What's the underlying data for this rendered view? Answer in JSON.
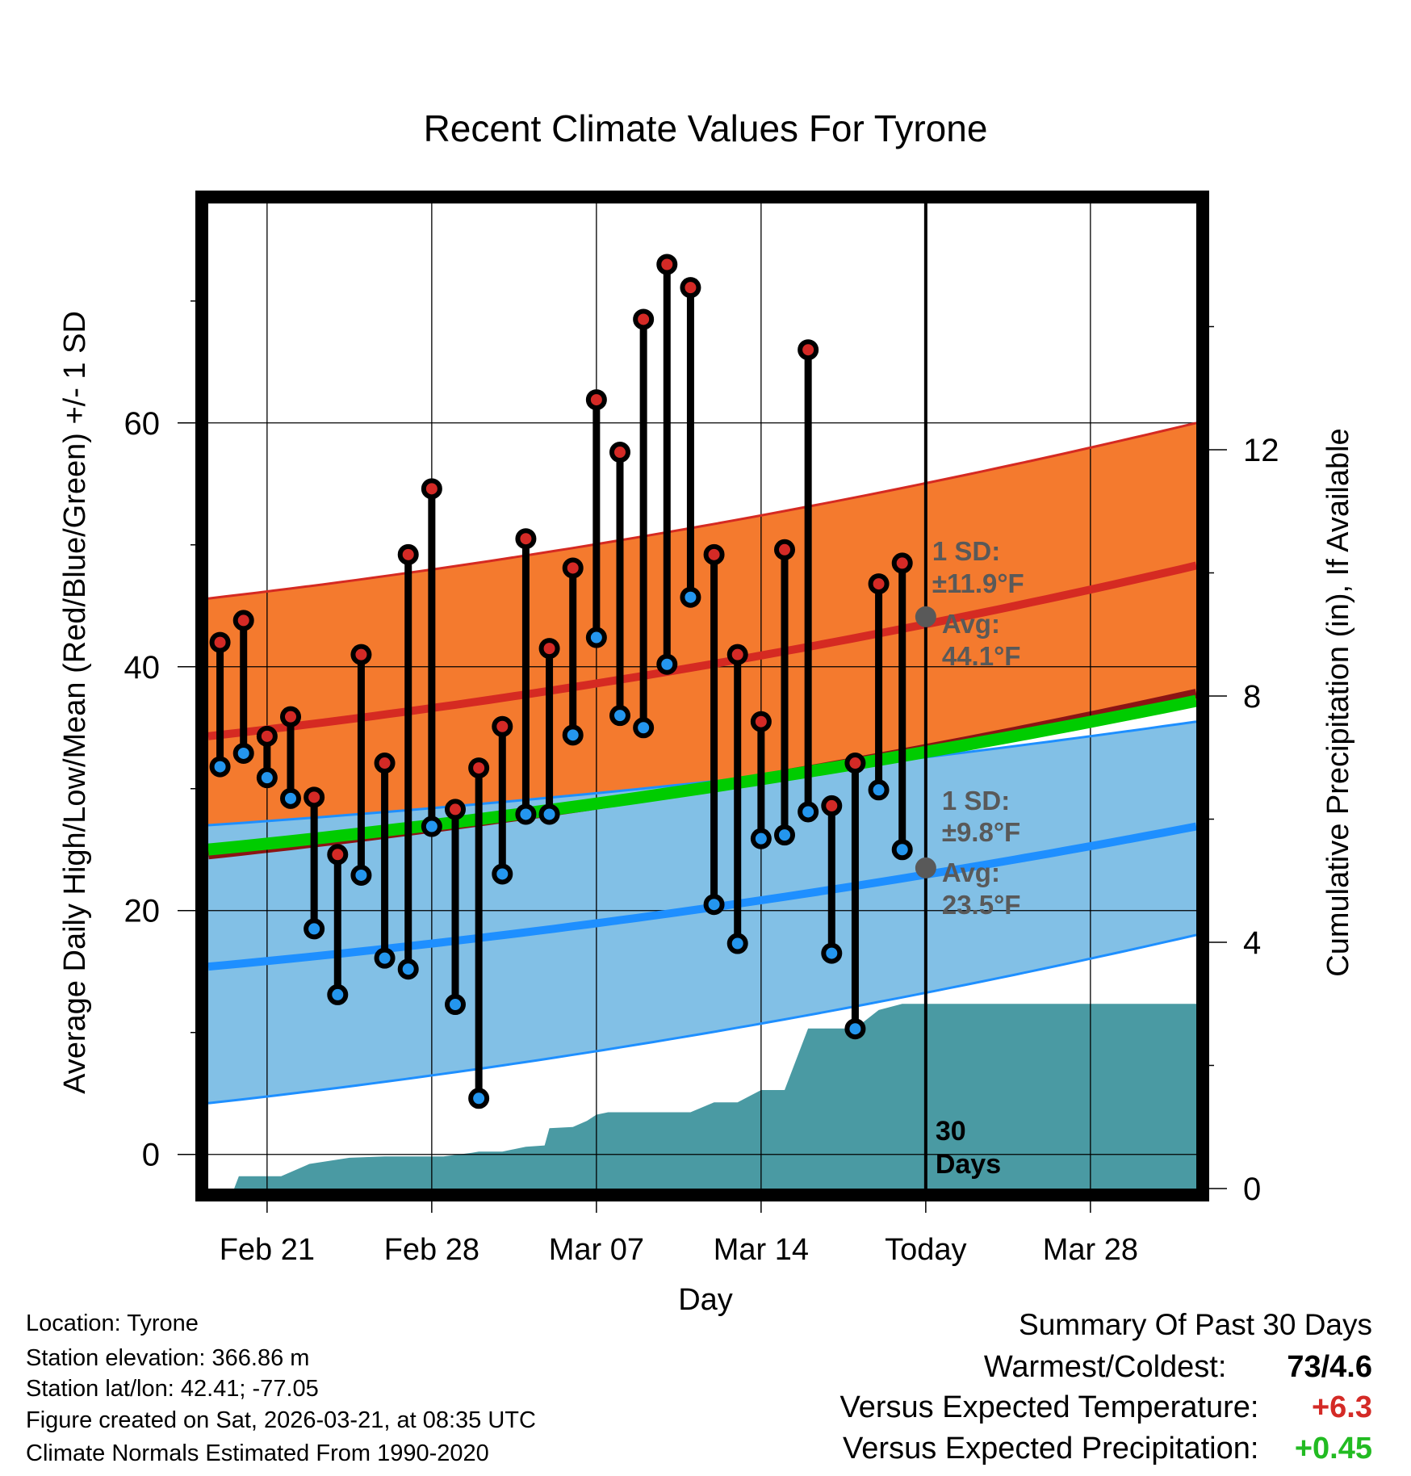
{
  "chart_data": {
    "type": "line",
    "title": "Recent Climate Values For Tyrone",
    "xlabel": "Day",
    "ylabel": "Average Daily High/Low/Mean (Red/Blue/Green) +/- 1 SD",
    "y2label": "Cumulative Precipitation (in), If Available",
    "xlim": [
      -2.5,
      39.5
    ],
    "ylim": [
      -2.8,
      78
    ],
    "y2lim": [
      0,
      16
    ],
    "x_ticks": [
      {
        "x": 0,
        "label": "Feb 21"
      },
      {
        "x": 7,
        "label": "Feb 28"
      },
      {
        "x": 14,
        "label": "Mar 07"
      },
      {
        "x": 21,
        "label": "Mar 14"
      },
      {
        "x": 28,
        "label": "Today"
      },
      {
        "x": 35,
        "label": "Mar 28"
      }
    ],
    "y_ticks": [
      0,
      20,
      40,
      60
    ],
    "y2_ticks": [
      0,
      4,
      8,
      12
    ],
    "grid": true,
    "today_x": 28,
    "days": [
      -2,
      -1,
      0,
      1,
      2,
      3,
      4,
      5,
      6,
      7,
      8,
      9,
      10,
      11,
      12,
      13,
      14,
      15,
      16,
      17,
      18,
      19,
      20,
      21,
      22,
      23,
      24,
      25,
      26,
      27
    ],
    "highs": [
      42,
      43.8,
      34.3,
      35.9,
      29.3,
      24.6,
      41,
      32.1,
      49.2,
      54.6,
      28.3,
      31.7,
      35.1,
      50.5,
      41.5,
      48.1,
      61.9,
      57.6,
      68.5,
      73,
      71.1,
      49.2,
      41,
      35.5,
      49.6,
      66,
      28.6,
      32.1,
      46.8,
      48.5
    ],
    "lows": [
      31.8,
      32.9,
      30.9,
      29.2,
      18.5,
      13.1,
      22.9,
      16.1,
      15.2,
      26.9,
      12.3,
      4.6,
      23,
      27.9,
      27.9,
      34.4,
      42.4,
      36,
      35,
      40.2,
      45.7,
      20.5,
      17.3,
      25.9,
      26.2,
      28.1,
      16.5,
      10.3,
      29.9,
      25
    ],
    "normal_high": {
      "x": [
        -2.5,
        39.5
      ],
      "mean": [
        34.3,
        48.3
      ],
      "plus_sd": [
        45.6,
        60
      ],
      "minus_sd": [
        24,
        37.2
      ]
    },
    "normal_low": {
      "x": [
        -2.5,
        39.5
      ],
      "mean": [
        15.4,
        26.9
      ],
      "plus_sd": [
        27,
        35.5
      ],
      "minus_sd": [
        4.2,
        18
      ]
    },
    "normal_mean": {
      "x": [
        -2.5,
        39.5
      ],
      "values": [
        25,
        37.2
      ]
    },
    "precip": {
      "x": [
        -1.4,
        -1.2,
        0.6,
        1.8,
        3.5,
        5,
        7.5,
        8.7,
        9,
        10,
        11,
        11.8,
        12,
        13,
        13.6,
        14,
        14.5,
        18,
        19,
        20,
        21,
        22,
        23,
        24,
        25,
        26,
        27,
        28,
        29,
        39.5
      ],
      "values": [
        0,
        0.2,
        0.2,
        0.4,
        0.5,
        0.52,
        0.52,
        0.58,
        0.6,
        0.6,
        0.68,
        0.7,
        0.98,
        1,
        1.1,
        1.2,
        1.24,
        1.24,
        1.4,
        1.4,
        1.6,
        1.6,
        2.6,
        2.6,
        2.6,
        2.9,
        3,
        3,
        3,
        3
      ]
    },
    "annotations": {
      "high": {
        "sd": "1 SD:",
        "sd_val": "±11.9°F",
        "avg": "Avg:",
        "avg_val": "44.1°F",
        "mean_value": 44.1
      },
      "low": {
        "sd": "1 SD:",
        "sd_val": "±9.8°F",
        "avg": "Avg:",
        "avg_val": "23.5°F",
        "mean_value": 23.5
      },
      "days": {
        "line1": "30",
        "line2": "Days"
      }
    },
    "colors": {
      "high_band": "#f47a2e",
      "high_line": "#d52a22",
      "low_band": "#82c0e6",
      "low_line": "#1e8fff",
      "mean_line": "#00cc00",
      "precip": "#4a9aa3",
      "dark_red": "#8b1414",
      "high_dot": "#d42a26",
      "low_dot": "#2496ee",
      "annotation": "#595959"
    }
  },
  "info": {
    "location": "Location: Tyrone",
    "elevation": "Station elevation: 366.86 m",
    "latlon": "Station lat/lon: 42.41; -77.05",
    "created": "Figure created on Sat, 2026-03-21, at 08:35 UTC",
    "normals": "Climate Normals Estimated From 1990-2020"
  },
  "summary": {
    "title": "Summary Of Past 30 Days",
    "warmest_label": "Warmest/Coldest:",
    "warmest_value": "73/4.6",
    "temp_label": "Versus Expected Temperature:",
    "temp_value": "+6.3",
    "temp_color": "#d42a26",
    "precip_label": "Versus Expected Precipitation:",
    "precip_value": "+0.45",
    "precip_color": "#22bb22"
  }
}
